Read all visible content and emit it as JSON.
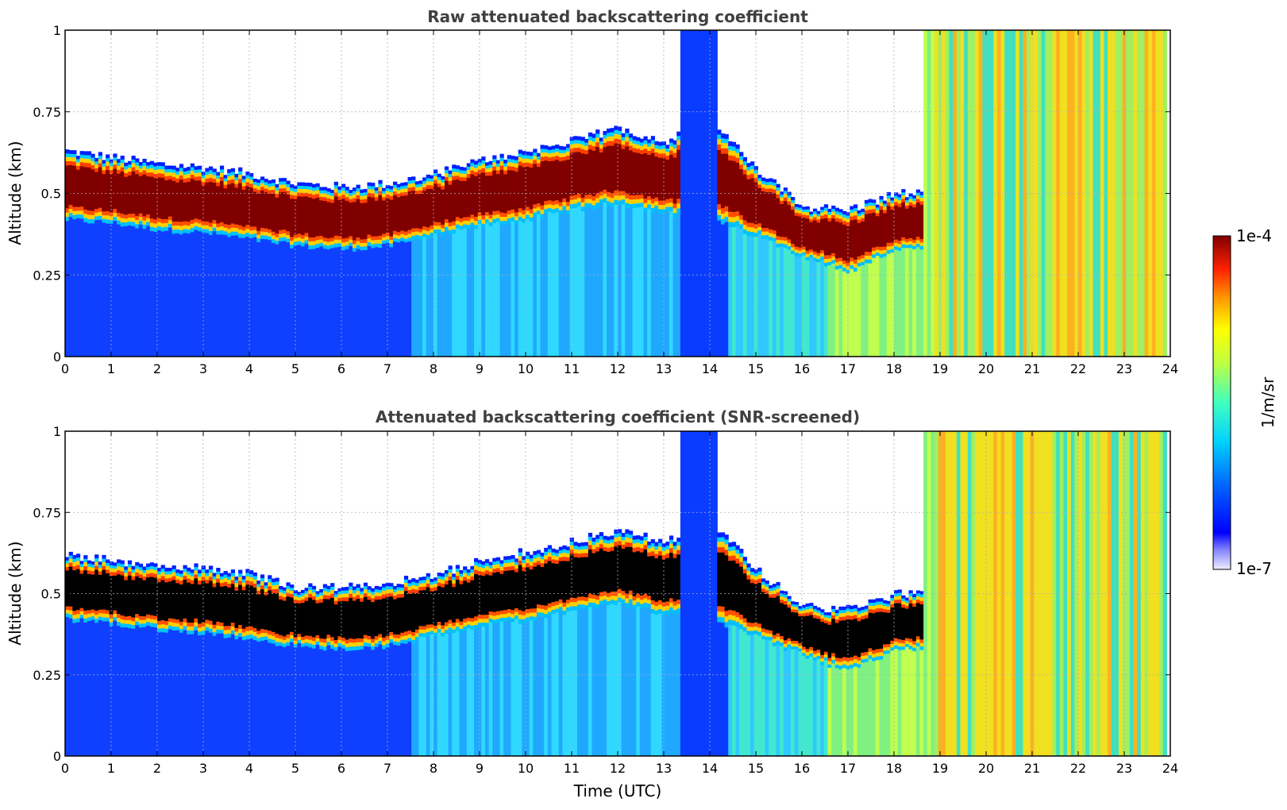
{
  "chart_data": [
    {
      "type": "heatmap",
      "title": "Raw attenuated backscattering coefficient",
      "xlabel": "",
      "ylabel": "Altitude (km)",
      "xlim": [
        0,
        24
      ],
      "ylim": [
        0,
        1
      ],
      "xticks": [
        "0",
        "1",
        "2",
        "3",
        "4",
        "5",
        "6",
        "7",
        "8",
        "9",
        "10",
        "11",
        "12",
        "13",
        "14",
        "15",
        "16",
        "17",
        "18",
        "19",
        "20",
        "21",
        "22",
        "23",
        "24"
      ],
      "yticks": [
        "0",
        "0.25",
        "0.5",
        "0.75",
        "1"
      ],
      "grid": true,
      "saturated_color": "#800000",
      "layer_top_km": [
        [
          0,
          0.63
        ],
        [
          1,
          0.61
        ],
        [
          2,
          0.59
        ],
        [
          3,
          0.58
        ],
        [
          4,
          0.56
        ],
        [
          5,
          0.53
        ],
        [
          6,
          0.52
        ],
        [
          7,
          0.53
        ],
        [
          8,
          0.56
        ],
        [
          9,
          0.6
        ],
        [
          10,
          0.63
        ],
        [
          11,
          0.66
        ],
        [
          12,
          0.7
        ],
        [
          13,
          0.66
        ],
        [
          14,
          0.72
        ],
        [
          15,
          0.57
        ],
        [
          16,
          0.46
        ],
        [
          17,
          0.45
        ],
        [
          18,
          0.5
        ]
      ],
      "layer_bottom_km": [
        [
          0,
          0.42
        ],
        [
          1,
          0.41
        ],
        [
          2,
          0.39
        ],
        [
          3,
          0.38
        ],
        [
          4,
          0.36
        ],
        [
          5,
          0.34
        ],
        [
          6,
          0.33
        ],
        [
          7,
          0.34
        ],
        [
          8,
          0.37
        ],
        [
          9,
          0.4
        ],
        [
          10,
          0.42
        ],
        [
          11,
          0.45
        ],
        [
          12,
          0.47
        ],
        [
          13,
          0.44
        ],
        [
          14,
          0.42
        ],
        [
          15,
          0.37
        ],
        [
          16,
          0.31
        ],
        [
          17,
          0.26
        ],
        [
          18,
          0.33
        ]
      ]
    },
    {
      "type": "heatmap",
      "title": "Attenuated backscattering coefficient (SNR-screened)",
      "xlabel": "Time (UTC)",
      "ylabel": "Altitude (km)",
      "xlim": [
        0,
        24
      ],
      "ylim": [
        0,
        1
      ],
      "xticks": [
        "0",
        "1",
        "2",
        "3",
        "4",
        "5",
        "6",
        "7",
        "8",
        "9",
        "10",
        "11",
        "12",
        "13",
        "14",
        "15",
        "16",
        "17",
        "18",
        "19",
        "20",
        "21",
        "22",
        "23",
        "24"
      ],
      "yticks": [
        "0",
        "0.25",
        "0.5",
        "0.75",
        "1"
      ],
      "grid": true,
      "saturated_color": "#000000",
      "layer_top_km": [
        [
          0,
          0.62
        ],
        [
          1,
          0.6
        ],
        [
          2,
          0.59
        ],
        [
          3,
          0.58
        ],
        [
          4,
          0.56
        ],
        [
          5,
          0.52
        ],
        [
          6,
          0.52
        ],
        [
          7,
          0.53
        ],
        [
          8,
          0.56
        ],
        [
          9,
          0.6
        ],
        [
          10,
          0.63
        ],
        [
          11,
          0.66
        ],
        [
          12,
          0.7
        ],
        [
          13,
          0.66
        ],
        [
          14,
          0.72
        ],
        [
          15,
          0.57
        ],
        [
          16,
          0.46
        ],
        [
          17,
          0.45
        ],
        [
          18,
          0.5
        ]
      ],
      "layer_bottom_km": [
        [
          0,
          0.42
        ],
        [
          1,
          0.41
        ],
        [
          2,
          0.39
        ],
        [
          3,
          0.38
        ],
        [
          4,
          0.36
        ],
        [
          5,
          0.34
        ],
        [
          6,
          0.33
        ],
        [
          7,
          0.34
        ],
        [
          8,
          0.37
        ],
        [
          9,
          0.4
        ],
        [
          10,
          0.42
        ],
        [
          11,
          0.45
        ],
        [
          12,
          0.47
        ],
        [
          13,
          0.44
        ],
        [
          14,
          0.42
        ],
        [
          15,
          0.37
        ],
        [
          16,
          0.31
        ],
        [
          17,
          0.26
        ],
        [
          18,
          0.33
        ]
      ]
    }
  ],
  "colorbar": {
    "label": "1/m/sr",
    "max_label": "1e-4",
    "min_label": "1e-7",
    "colormap": "jet",
    "scale": "log",
    "range": [
      1e-07,
      0.0001
    ]
  }
}
